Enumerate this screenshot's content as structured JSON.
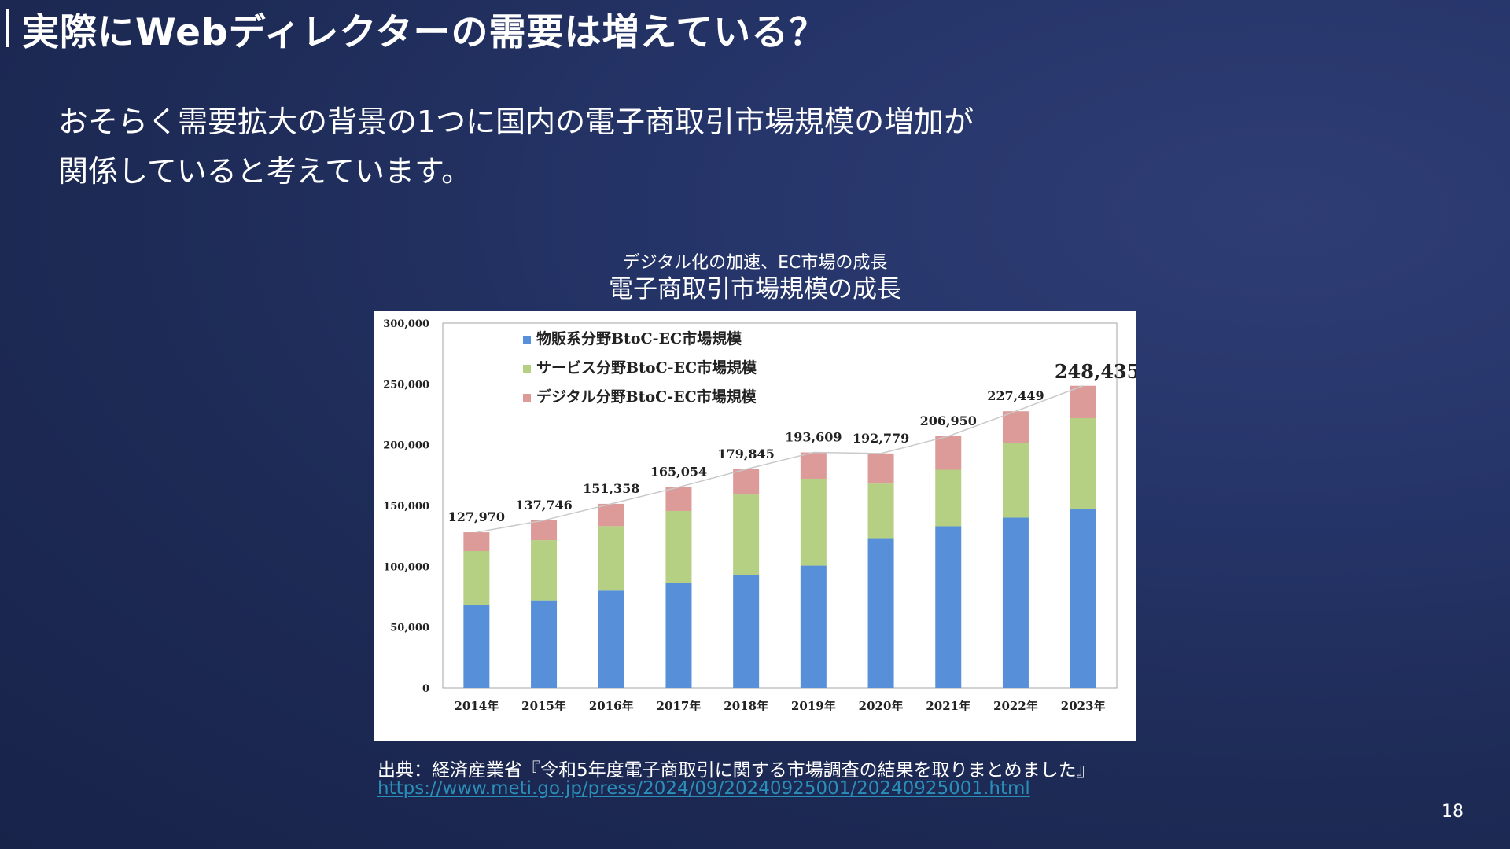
{
  "slide": {
    "title": "実際にWebディレクターの需要は増えている？",
    "lead_line1": "おそらく需要拡大の背景の1つに国内の電子商取引市場規模の増加が",
    "lead_line2": "関係していると考えています。",
    "chart_subtitle": "デジタル化の加速、EC市場の成長",
    "chart_heading": "電子商取引市場規模の成長",
    "source_text": "出典：経済産業省『令和5年度電子商取引に関する市場調査の結果を取りまとめました』",
    "source_url": "https://www.meti.go.jp/press/2024/09/20240925001/20240925001.html",
    "page_number": "18"
  },
  "chart_data": {
    "type": "bar",
    "stacked": true,
    "categories": [
      "2014年",
      "2015年",
      "2016年",
      "2017年",
      "2018年",
      "2019年",
      "2020年",
      "2021年",
      "2022年",
      "2023年"
    ],
    "series": [
      {
        "name": "物販系分野BtoC-EC市場規模",
        "color": "#5790d8",
        "values": [
          68000,
          72000,
          80000,
          86000,
          93000,
          100500,
          122500,
          132900,
          140000,
          146800
        ]
      },
      {
        "name": "サービス分野BtoC-EC市場規模",
        "color": "#b5cf83",
        "values": [
          44500,
          49500,
          53000,
          59500,
          66000,
          71500,
          45500,
          46500,
          61500,
          75000
        ]
      },
      {
        "name": "デジタル分野BtoC-EC市場規模",
        "color": "#dc9a98",
        "values": [
          15470,
          16246,
          18358,
          19554,
          20845,
          21609,
          24779,
          27550,
          25949,
          26635
        ]
      }
    ],
    "totals": [
      "127,970",
      "137,746",
      "151,358",
      "165,054",
      "179,845",
      "193,609",
      "192,779",
      "206,950",
      "227,449",
      "248,435"
    ],
    "y_ticks": [
      "0",
      "50,000",
      "100,000",
      "150,000",
      "200,000",
      "250,000",
      "300,000"
    ],
    "ylim": [
      0,
      300000
    ],
    "legend_position": "top-left"
  }
}
